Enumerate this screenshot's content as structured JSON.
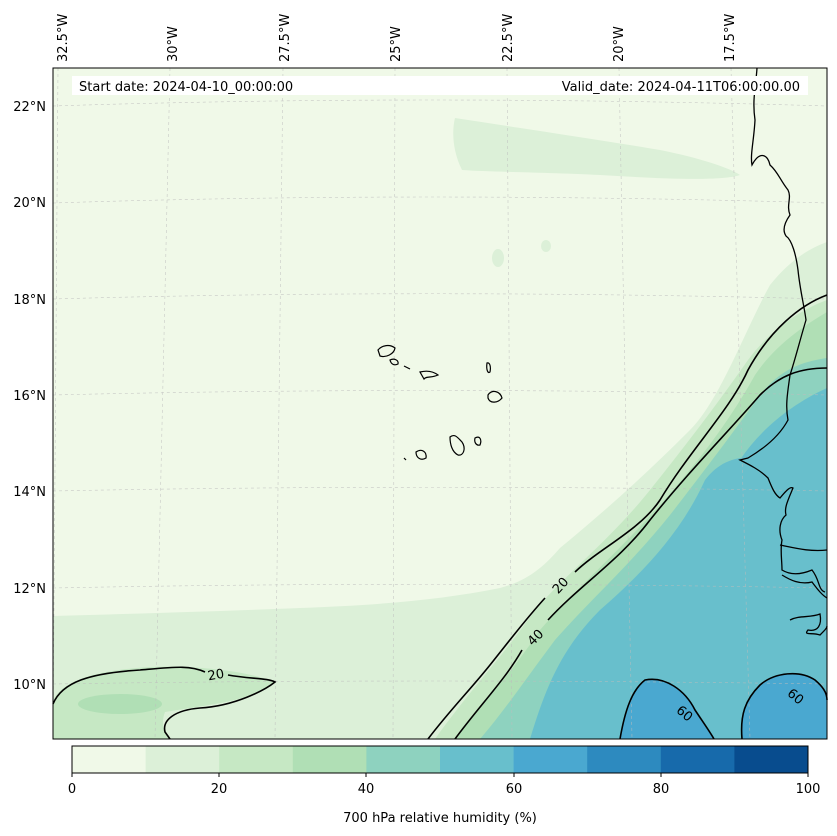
{
  "map": {
    "start_date_text": "Start date: 2024-04-10_00:00:00",
    "valid_date_text": "Valid_date: 2024-04-11T06:00:00.00",
    "lon_labels": [
      "32.5°W",
      "30°W",
      "27.5°W",
      "25°W",
      "22.5°W",
      "20°W",
      "17.5°W"
    ],
    "lat_labels": [
      "22°N",
      "20°N",
      "18°N",
      "16°N",
      "14°N",
      "12°N",
      "10°N"
    ],
    "contour_labels": [
      "20",
      "20",
      "40",
      "60",
      "60"
    ]
  },
  "colorbar": {
    "title": "700 hPa relative humidity (%)",
    "tick_labels": [
      "0",
      "20",
      "40",
      "60",
      "80",
      "100"
    ],
    "level_colors": [
      "#f0f9e8",
      "#dcf0d8",
      "#c6e8c4",
      "#b0dfb5",
      "#8ed2bf",
      "#68bfcc",
      "#4aa8d0",
      "#2d8abf",
      "#176aab",
      "#084c8e"
    ]
  }
}
